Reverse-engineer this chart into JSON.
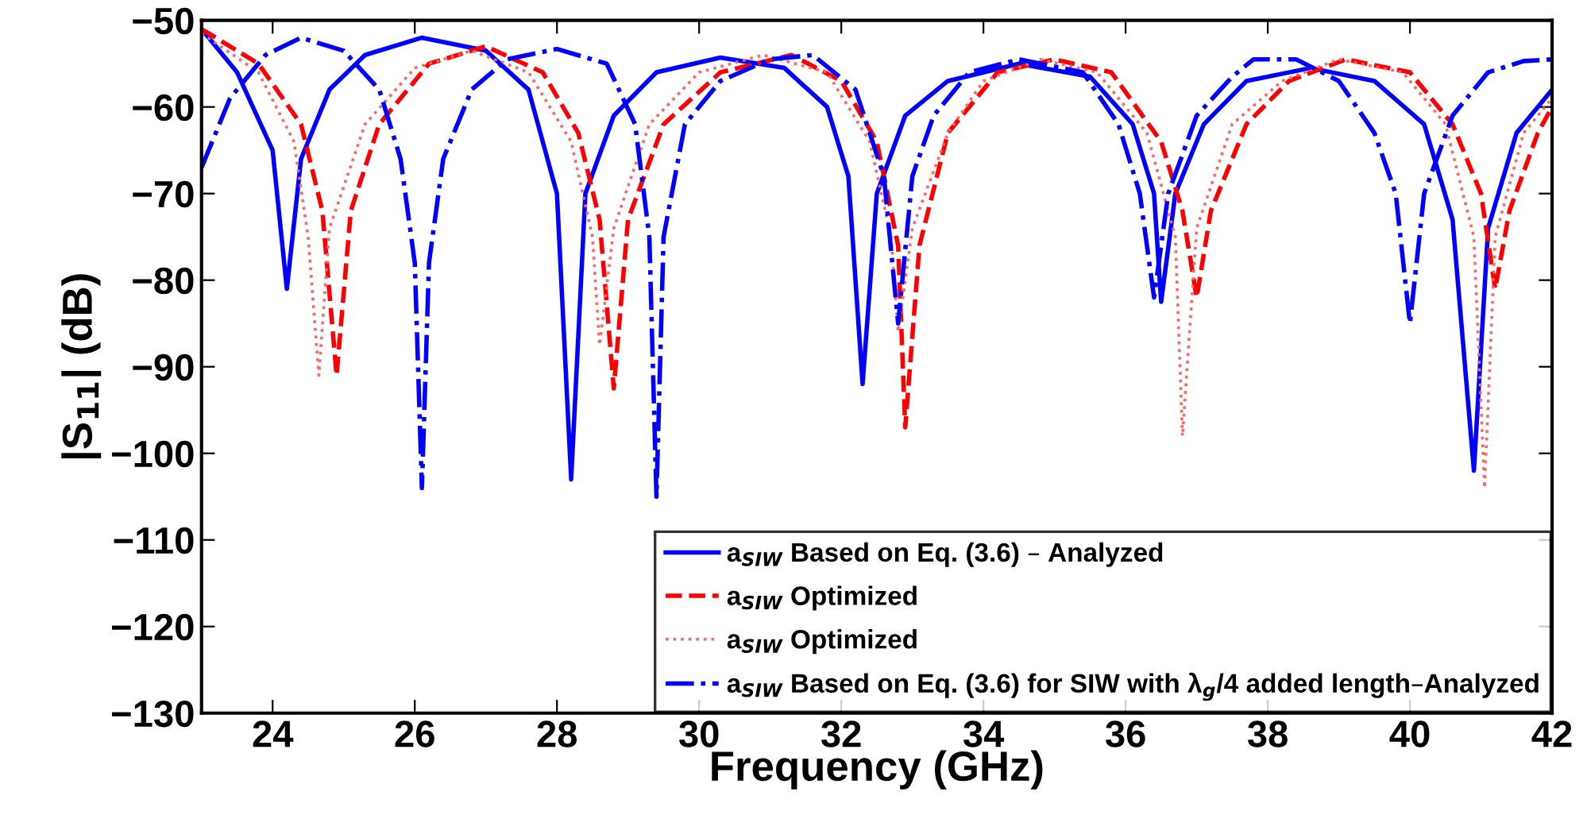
{
  "chart_data": {
    "type": "line",
    "xlabel": "Frequency (GHz)",
    "ylabel": "|S$_{11}$| (dB)",
    "xlim": [
      23,
      42
    ],
    "ylim": [
      -130,
      -50
    ],
    "xticks": [
      24,
      26,
      28,
      30,
      32,
      34,
      36,
      38,
      40,
      42
    ],
    "yticks": [
      -130,
      -120,
      -110,
      -100,
      -90,
      -80,
      -70,
      -60,
      -50
    ],
    "grid": false,
    "legend": "bottom right",
    "marker": "none",
    "series": [
      {
        "name": "a$_{SIW}$ Based on Eq. (3.6) – Analyzed",
        "color": "#0000ff",
        "line_style": "solid",
        "x": [
          23,
          23.5,
          24.0,
          24.2,
          24.4,
          24.8,
          25.3,
          26.1,
          27,
          27.6,
          28.0,
          28.2,
          28.4,
          28.8,
          29.4,
          30.3,
          31.2,
          31.8,
          32.1,
          32.3,
          32.5,
          32.9,
          33.5,
          34.5,
          35.5,
          36.1,
          36.4,
          36.5,
          36.7,
          37.1,
          37.7,
          38.6,
          39.5,
          40.2,
          40.6,
          40.9,
          41.1,
          41.5,
          42
        ],
        "values": [
          -51,
          -56,
          -65,
          -81,
          -66,
          -58,
          -54,
          -52,
          -53.5,
          -58,
          -70,
          -103,
          -70,
          -61,
          -56,
          -54.3,
          -55.5,
          -60,
          -68,
          -92,
          -70,
          -61,
          -57,
          -55,
          -56.5,
          -62,
          -70,
          -82.5,
          -70,
          -62,
          -57,
          -55.5,
          -57,
          -62,
          -73,
          -102,
          -74,
          -63,
          -58
        ]
      },
      {
        "name": "a$_{SIW}$ Optimized",
        "color": "#ff0000",
        "line_style": "dashed",
        "x": [
          23,
          23.8,
          24.4,
          24.7,
          24.9,
          25.1,
          25.5,
          26.2,
          27,
          27.8,
          28.3,
          28.6,
          28.8,
          29.0,
          29.5,
          30.3,
          31.3,
          32.0,
          32.5,
          32.8,
          32.9,
          33.1,
          33.5,
          34.2,
          35,
          35.8,
          36.5,
          36.8,
          37,
          37.2,
          37.7,
          38.3,
          39.1,
          40,
          40.6,
          41.0,
          41.2,
          41.4,
          41.8,
          42
        ],
        "values": [
          -51,
          -55,
          -62,
          -72,
          -91,
          -72,
          -62,
          -55,
          -53,
          -56,
          -63,
          -73,
          -92.5,
          -73,
          -62,
          -56,
          -54,
          -57,
          -64,
          -76,
          -97,
          -76,
          -63,
          -56,
          -54.5,
          -56,
          -64,
          -72,
          -82,
          -72,
          -62,
          -57,
          -54.5,
          -56,
          -62,
          -70,
          -81,
          -72,
          -63,
          -60
        ]
      },
      {
        "name": "a$_{SIW}$ Optimized",
        "color": "#ff6666",
        "line_style": "dotted",
        "x": [
          23,
          23.8,
          24.3,
          24.5,
          24.65,
          24.8,
          25.3,
          26,
          26.8,
          27.6,
          28.2,
          28.5,
          28.6,
          28.8,
          29.3,
          30,
          30.9,
          31.8,
          32.4,
          32.7,
          32.8,
          33.0,
          33.5,
          34,
          34.8,
          35.6,
          36.3,
          36.7,
          36.8,
          37.0,
          37.5,
          38.2,
          39,
          39.9,
          40.5,
          40.9,
          41.05,
          41.2,
          41.6,
          42
        ],
        "values": [
          -51.5,
          -56,
          -64,
          -75,
          -91,
          -74,
          -62,
          -55.5,
          -53.5,
          -56,
          -64,
          -75,
          -87.5,
          -74,
          -62,
          -56,
          -54,
          -56,
          -64,
          -75,
          -86,
          -74,
          -63,
          -57,
          -54.5,
          -56,
          -63,
          -75,
          -98,
          -74,
          -62,
          -57,
          -54.5,
          -56,
          -62,
          -75,
          -104,
          -75,
          -63,
          -59
        ]
      },
      {
        "name": "a$_{SIW}$ Based on Eq. (3.6) for SIW with λ$_{g}$/4 added length–Analyzed",
        "color": "#0000ff",
        "line_style": "dashdot",
        "x": [
          23,
          23.4,
          23.9,
          24.4,
          25.0,
          25.5,
          25.8,
          26.0,
          26.1,
          26.2,
          26.4,
          26.8,
          27.3,
          28,
          28.7,
          29.1,
          29.3,
          29.4,
          29.5,
          29.8,
          30.3,
          31.0,
          31.6,
          32.2,
          32.6,
          32.8,
          33.0,
          33.3,
          33.8,
          34.5,
          35.4,
          35.9,
          36.2,
          36.4,
          36.6,
          37.0,
          37.5,
          37.8,
          38.4,
          39.0,
          39.5,
          39.8,
          40.0,
          40.2,
          40.6,
          41.1,
          41.6,
          42
        ],
        "values": [
          -67,
          -59,
          -54,
          -52,
          -53.5,
          -58,
          -66,
          -78,
          -104,
          -78,
          -66,
          -58,
          -54.5,
          -53.3,
          -55,
          -62,
          -75,
          -105,
          -75,
          -62,
          -57,
          -54.5,
          -54,
          -58,
          -68,
          -85,
          -68,
          -61,
          -56,
          -54.5,
          -56,
          -62,
          -70,
          -82,
          -70,
          -61,
          -56.5,
          -54.5,
          -54.5,
          -57,
          -63,
          -70,
          -85,
          -70,
          -61,
          -56,
          -54.7,
          -54.5
        ]
      }
    ]
  }
}
